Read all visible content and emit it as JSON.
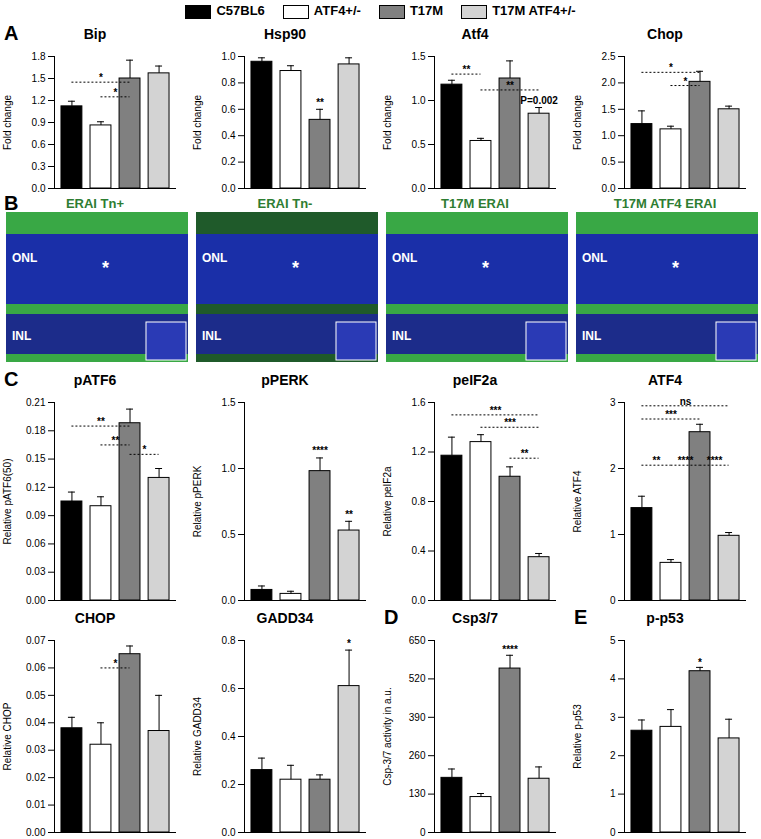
{
  "series": [
    {
      "name": "C57BL6",
      "color": "#000000"
    },
    {
      "name": "ATF4+/-",
      "color": "#ffffff"
    },
    {
      "name": "T17M",
      "color": "#808080"
    },
    {
      "name": "T17M ATF4+/-",
      "color": "#d3d3d3"
    }
  ],
  "panel_B": {
    "label": "B",
    "images": [
      {
        "title": "ERAI Tn+",
        "marks": [
          "ONL",
          "INL",
          "*"
        ]
      },
      {
        "title": "ERAI Tn-",
        "marks": [
          "ONL",
          "INL",
          "*"
        ]
      },
      {
        "title": "T17M ERAI",
        "marks": [
          "ONL",
          "INL",
          "*"
        ]
      },
      {
        "title": "T17M ATF4 ERAI",
        "marks": [
          "ONL",
          "INL",
          "*"
        ]
      }
    ]
  },
  "chart_data": [
    {
      "type": "bar",
      "panel": "A",
      "title": "Bip",
      "y_label": "Fold change",
      "tick_labels": "y",
      "values": [
        1.12,
        0.86,
        1.5,
        1.57
      ],
      "errors": [
        0.07,
        0.05,
        0.25,
        0.1
      ],
      "ylim": [
        0,
        1.8
      ],
      "yticks": [
        {
          "value": 0,
          "label": "0.0"
        },
        0.3,
        0.6,
        0.9,
        1.2,
        1.5,
        1.8
      ],
      "annotations": [
        {
          "text": "*",
          "from": 0,
          "to": 2,
          "y": 1.45
        },
        {
          "text": "*",
          "from": 1,
          "to": 2,
          "y": 1.25
        }
      ]
    },
    {
      "type": "bar",
      "title": "Hsp90",
      "y_label": "Fold change",
      "tick_labels": "y",
      "values": [
        0.96,
        0.89,
        0.52,
        0.94
      ],
      "errors": [
        0.03,
        0.04,
        0.08,
        0.05
      ],
      "ylim": [
        0,
        1
      ],
      "yticks": [
        {
          "value": 0,
          "label": "0.0"
        },
        0.2,
        0.4,
        0.6,
        0.8,
        {
          "value": 1,
          "label": "1.0"
        }
      ],
      "annotations": [
        {
          "text": "**",
          "from": 2,
          "to": 2,
          "y": 0.62
        }
      ]
    },
    {
      "type": "bar",
      "title": "Atf4",
      "y_label": "Fold change",
      "tick_labels": "y",
      "values": [
        1.18,
        0.54,
        1.25,
        0.85
      ],
      "errors": [
        0.05,
        0.03,
        0.2,
        0.07
      ],
      "ylim": [
        0,
        1.5
      ],
      "yticks": [
        {
          "value": 0,
          "label": "0.0"
        },
        0.5,
        {
          "value": 1,
          "label": "1.0"
        },
        1.5
      ],
      "annotations": [
        {
          "text": "**",
          "from": 0,
          "to": 1,
          "y": 1.3
        },
        {
          "text": "**",
          "from": 1,
          "to": 3,
          "y": 1.12
        },
        {
          "text": "P=0.002",
          "from": 3,
          "to": 3,
          "y": 0.95
        }
      ]
    },
    {
      "type": "bar",
      "title": "Chop",
      "y_label": "Fold change",
      "tick_labels": "y",
      "values": [
        1.22,
        1.12,
        2.02,
        1.5
      ],
      "errors": [
        0.25,
        0.06,
        0.2,
        0.06
      ],
      "ylim": [
        0,
        2.5
      ],
      "yticks": [
        {
          "value": 0,
          "label": "0.0"
        },
        0.5,
        {
          "value": 1,
          "label": "1.0"
        },
        1.5,
        {
          "value": 2,
          "label": "2.0"
        },
        2.5
      ],
      "annotations": [
        {
          "text": "*",
          "from": 0,
          "to": 2,
          "y": 2.2
        },
        {
          "text": "*",
          "from": 1,
          "to": 2,
          "y": 1.95
        }
      ]
    },
    {
      "type": "bar",
      "panel": "C",
      "title": "pATF6",
      "y_label": "Relative pATF6(50)",
      "tick_labels": "y",
      "values": [
        0.105,
        0.1,
        0.188,
        0.13
      ],
      "errors": [
        0.01,
        0.01,
        0.015,
        0.01
      ],
      "ylim": [
        0,
        0.21
      ],
      "yticks": [
        {
          "value": 0,
          "label": "0.00"
        },
        0.03,
        0.06,
        0.09,
        0.12,
        0.15,
        0.18,
        0.21
      ],
      "annotations": [
        {
          "text": "**",
          "from": 0,
          "to": 2,
          "y": 0.185
        },
        {
          "text": "**",
          "from": 1,
          "to": 2,
          "y": 0.165
        },
        {
          "text": "*",
          "from": 2,
          "to": 3,
          "y": 0.155
        }
      ]
    },
    {
      "type": "bar",
      "title": "pPERK",
      "y_label": "Relative pPERK",
      "tick_labels": "y",
      "values": [
        0.08,
        0.05,
        0.98,
        0.53
      ],
      "errors": [
        0.03,
        0.02,
        0.1,
        0.07
      ],
      "ylim": [
        0,
        1.5
      ],
      "yticks": [
        {
          "value": 0,
          "label": "0.0"
        },
        0.5,
        {
          "value": 1,
          "label": "1.0"
        },
        1.5
      ],
      "annotations": [
        {
          "text": "****",
          "from": 2,
          "to": 2,
          "y": 1.1
        },
        {
          "text": "**",
          "from": 3,
          "to": 3,
          "y": 0.62
        }
      ]
    },
    {
      "type": "bar",
      "title": "peIF2a",
      "y_label": "Relative peIF2a",
      "tick_labels": "y",
      "values": [
        1.17,
        1.28,
        1.0,
        0.35
      ],
      "errors": [
        0.15,
        0.06,
        0.08,
        0.03
      ],
      "ylim": [
        0,
        1.6
      ],
      "yticks": [
        {
          "value": 0,
          "label": "0.0"
        },
        0.4,
        0.8,
        1.2,
        1.6
      ],
      "annotations": [
        {
          "text": "***",
          "from": 0,
          "to": 3,
          "y": 1.5
        },
        {
          "text": "***",
          "from": 1,
          "to": 3,
          "y": 1.4
        },
        {
          "text": "**",
          "from": 2,
          "to": 3,
          "y": 1.15
        }
      ]
    },
    {
      "type": "bar",
      "title": "ATF4",
      "y_label": "Relative ATF4",
      "tick_labels": "y",
      "values": [
        1.4,
        0.57,
        2.55,
        0.98
      ],
      "errors": [
        0.18,
        0.05,
        0.12,
        0.05
      ],
      "ylim": [
        0,
        3
      ],
      "yticks": [
        0,
        1,
        2,
        3
      ],
      "annotations": [
        {
          "text": "ns",
          "from": 0,
          "to": 3,
          "y": 2.95
        },
        {
          "text": "***",
          "from": 0,
          "to": 2,
          "y": 2.75
        },
        {
          "text": "**",
          "from": 0,
          "to": 1,
          "y": 2.05
        },
        {
          "text": "****",
          "from": 1,
          "to": 2,
          "y": 2.05
        },
        {
          "text": "****",
          "from": 2,
          "to": 3,
          "y": 2.05
        }
      ]
    },
    {
      "type": "bar",
      "title": "CHOP",
      "y_label": "Relative CHOP",
      "tick_labels": "y",
      "values": [
        0.038,
        0.032,
        0.065,
        0.037
      ],
      "errors": [
        0.004,
        0.008,
        0.003,
        0.013
      ],
      "ylim": [
        0,
        0.07
      ],
      "yticks": [
        {
          "value": 0,
          "label": "0.00"
        },
        0.01,
        0.02,
        0.03,
        0.04,
        0.05,
        0.06,
        0.07
      ],
      "annotations": [
        {
          "text": "*",
          "from": 1,
          "to": 2,
          "y": 0.06
        }
      ]
    },
    {
      "type": "bar",
      "title": "GADD34",
      "y_label": "Relative GADD34",
      "tick_labels": "y",
      "values": [
        0.26,
        0.22,
        0.22,
        0.61
      ],
      "errors": [
        0.05,
        0.06,
        0.02,
        0.15
      ],
      "ylim": [
        0,
        0.8
      ],
      "yticks": [
        {
          "value": 0,
          "label": "0.0"
        },
        0.2,
        0.4,
        0.6,
        0.8
      ],
      "annotations": [
        {
          "text": "*",
          "from": 3,
          "to": 3,
          "y": 0.77
        }
      ]
    },
    {
      "type": "bar",
      "panel": "D",
      "title": "Csp3/7",
      "y_label": "Csp-3/7 activity in a.u.",
      "tick_labels": "y",
      "values": [
        185,
        120,
        555,
        182
      ],
      "errors": [
        30,
        12,
        45,
        40
      ],
      "ylim": [
        0,
        650
      ],
      "yticks": [
        0,
        130,
        260,
        390,
        520,
        650
      ],
      "annotations": [
        {
          "text": "****",
          "from": 2,
          "to": 2,
          "y": 605
        }
      ]
    },
    {
      "type": "bar",
      "panel": "E",
      "title": "p-p53",
      "y_label": "Relative p-p53",
      "tick_labels": "y",
      "values": [
        2.65,
        2.75,
        4.2,
        2.45
      ],
      "errors": [
        0.28,
        0.45,
        0.1,
        0.5
      ],
      "ylim": [
        0,
        5
      ],
      "yticks": [
        0,
        1,
        2,
        3,
        4,
        5
      ],
      "annotations": [
        {
          "text": "*",
          "from": 2,
          "to": 2,
          "y": 4.32
        }
      ]
    }
  ]
}
